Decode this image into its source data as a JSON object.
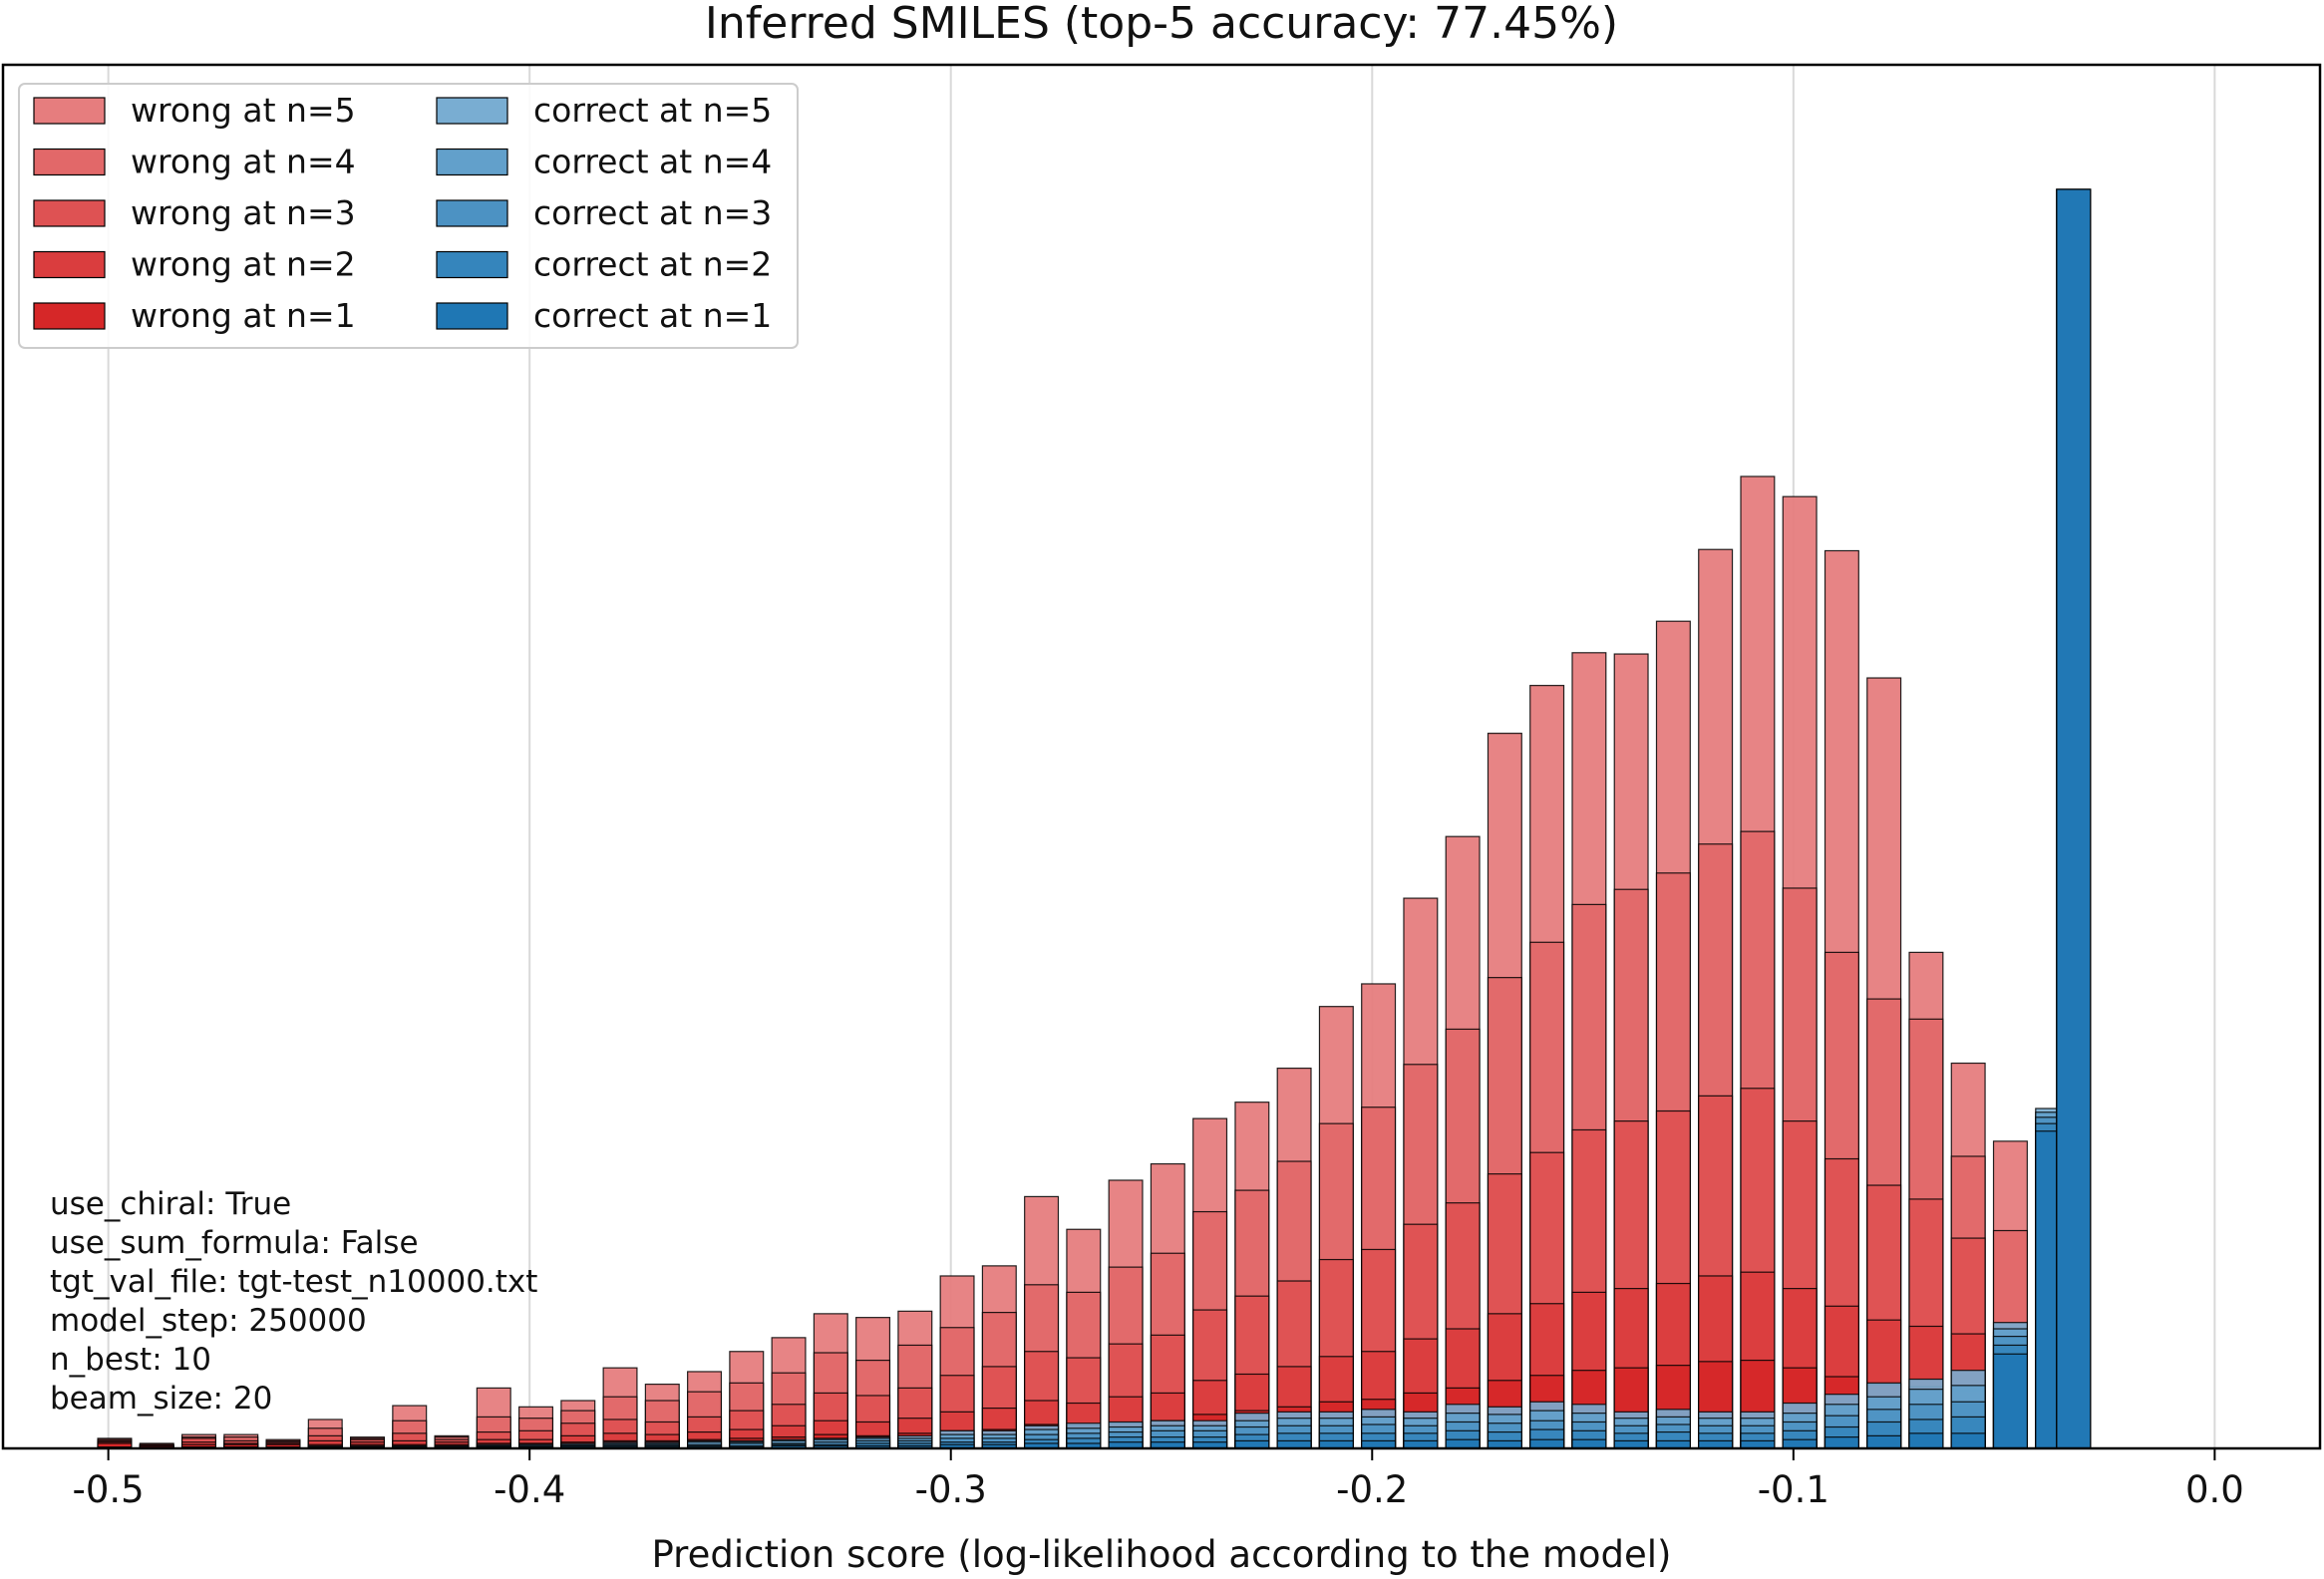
{
  "chart_data": {
    "type": "bar",
    "title": "Inferred SMILES (top-5 accuracy: 77.45%)",
    "xlabel": "Prediction score (log-likelihood according to the model)",
    "ylabel": "",
    "xlim": [
      -0.525,
      0.025
    ],
    "ylim": [
      0,
      1000
    ],
    "xticks": [
      -0.5,
      -0.4,
      -0.3,
      -0.2,
      -0.1,
      0.0
    ],
    "xtick_labels": [
      "-0.5",
      "-0.4",
      "-0.3",
      "-0.2",
      "-0.1",
      "0.0"
    ],
    "grid": "vertical",
    "legend_position": "top-left",
    "colors": {
      "wrong_base": "#d62728",
      "correct_base": "#1f77b4",
      "edge": "#000000"
    },
    "legend": [
      {
        "label": "wrong at n=5",
        "group": "wrong",
        "n": 5
      },
      {
        "label": "wrong at n=4",
        "group": "wrong",
        "n": 4
      },
      {
        "label": "wrong at n=3",
        "group": "wrong",
        "n": 3
      },
      {
        "label": "wrong at n=2",
        "group": "wrong",
        "n": 2
      },
      {
        "label": "wrong at n=1",
        "group": "wrong",
        "n": 1
      },
      {
        "label": "correct at n=5",
        "group": "correct",
        "n": 5
      },
      {
        "label": "correct at n=4",
        "group": "correct",
        "n": 4
      },
      {
        "label": "correct at n=3",
        "group": "correct",
        "n": 3
      },
      {
        "label": "correct at n=2",
        "group": "correct",
        "n": 2
      },
      {
        "label": "correct at n=1",
        "group": "correct",
        "n": 1
      }
    ],
    "annotation_lines": [
      "use_chiral: True",
      "use_sum_formula: False",
      "tgt_val_file: tgt-test_n10000.txt",
      "model_step: 250000",
      "n_best: 10",
      "beam_size: 20"
    ],
    "wrong_bars": [
      {
        "x": -0.4985,
        "stack": [
          4,
          5,
          6,
          7,
          8
        ]
      },
      {
        "x": -0.4885,
        "stack": [
          2,
          2,
          3,
          3,
          4
        ]
      },
      {
        "x": -0.4785,
        "stack": [
          3,
          5,
          8,
          9,
          11
        ]
      },
      {
        "x": -0.4685,
        "stack": [
          3,
          4,
          6,
          9,
          11
        ]
      },
      {
        "x": -0.4585,
        "stack": [
          3,
          4,
          5,
          6,
          7
        ]
      },
      {
        "x": -0.4485,
        "stack": [
          3,
          6,
          10,
          16,
          23
        ]
      },
      {
        "x": -0.4385,
        "stack": [
          3,
          5,
          7,
          8,
          9
        ]
      },
      {
        "x": -0.4285,
        "stack": [
          3,
          6,
          12,
          22,
          34
        ]
      },
      {
        "x": -0.4185,
        "stack": [
          3,
          5,
          7,
          9,
          10
        ]
      },
      {
        "x": -0.4085,
        "stack": [
          4,
          7,
          13,
          25,
          48
        ]
      },
      {
        "x": -0.3985,
        "stack": [
          4,
          7,
          14,
          24,
          33
        ]
      },
      {
        "x": -0.3885,
        "stack": [
          5,
          10,
          20,
          30,
          38
        ]
      },
      {
        "x": -0.3785,
        "stack": [
          6,
          12,
          23,
          41,
          64
        ]
      },
      {
        "x": -0.3685,
        "stack": [
          6,
          11,
          21,
          38,
          51
        ]
      },
      {
        "x": -0.3585,
        "stack": [
          7,
          13,
          25,
          45,
          61
        ]
      },
      {
        "x": -0.3485,
        "stack": [
          8,
          15,
          30,
          52,
          77
        ]
      },
      {
        "x": -0.3385,
        "stack": [
          9,
          18,
          35,
          60,
          88
        ]
      },
      {
        "x": -0.3285,
        "stack": [
          11,
          22,
          44,
          76,
          107
        ]
      },
      {
        "x": -0.3185,
        "stack": [
          10,
          21,
          42,
          70,
          104
        ]
      },
      {
        "x": -0.3085,
        "stack": [
          12,
          24,
          48,
          82,
          109
        ]
      },
      {
        "x": -0.2985,
        "stack": [
          14,
          29,
          58,
          96,
          137
        ]
      },
      {
        "x": -0.2885,
        "stack": [
          15,
          32,
          65,
          108,
          145
        ]
      },
      {
        "x": -0.2785,
        "stack": [
          19,
          38,
          77,
          130,
          200
        ]
      },
      {
        "x": -0.2685,
        "stack": [
          18,
          36,
          72,
          124,
          174
        ]
      },
      {
        "x": -0.2585,
        "stack": [
          20,
          41,
          83,
          144,
          213
        ]
      },
      {
        "x": -0.2485,
        "stack": [
          22,
          44,
          90,
          155,
          226
        ]
      },
      {
        "x": -0.2385,
        "stack": [
          27,
          54,
          110,
          188,
          262
        ]
      },
      {
        "x": -0.2285,
        "stack": [
          30,
          59,
          121,
          205,
          275
        ]
      },
      {
        "x": -0.2185,
        "stack": [
          33,
          65,
          133,
          228,
          302
        ]
      },
      {
        "x": -0.2085,
        "stack": [
          37,
          73,
          150,
          258,
          351
        ]
      },
      {
        "x": -0.1985,
        "stack": [
          39,
          77,
          158,
          271,
          369
        ]
      },
      {
        "x": -0.1885,
        "stack": [
          44,
          87,
          178,
          305,
          437
        ]
      },
      {
        "x": -0.1785,
        "stack": [
          48,
          95,
          195,
          333,
          486
        ]
      },
      {
        "x": -0.1685,
        "stack": [
          54,
          107,
          218,
          374,
          568
        ]
      },
      {
        "x": -0.1585,
        "stack": [
          58,
          115,
          235,
          402,
          606
        ]
      },
      {
        "x": -0.1485,
        "stack": [
          62,
          124,
          253,
          432,
          632
        ]
      },
      {
        "x": -0.1385,
        "stack": [
          64,
          127,
          260,
          444,
          631
        ]
      },
      {
        "x": -0.1285,
        "stack": [
          66,
          131,
          268,
          457,
          657
        ]
      },
      {
        "x": -0.1185,
        "stack": [
          69,
          137,
          280,
          480,
          714
        ]
      },
      {
        "x": -0.1085,
        "stack": [
          70,
          140,
          286,
          490,
          772
        ]
      },
      {
        "x": -0.0985,
        "stack": [
          64,
          127,
          260,
          445,
          756
        ]
      },
      {
        "x": -0.0885,
        "stack": [
          57,
          113,
          230,
          394,
          713
        ]
      },
      {
        "x": -0.0785,
        "stack": [
          51,
          102,
          209,
          357,
          612
        ]
      },
      {
        "x": -0.0685,
        "stack": [
          49,
          97,
          198,
          341,
          394
        ]
      },
      {
        "x": -0.0585,
        "stack": [
          46,
          91,
          167,
          232,
          306
        ]
      },
      {
        "x": -0.0485,
        "stack": [
          40,
          70,
          92,
          173,
          244
        ]
      },
      {
        "x": -0.0385,
        "stack": [
          11,
          24,
          45,
          90,
          135
        ]
      }
    ],
    "correct_bars": [
      {
        "x": -0.4985,
        "stack": [
          0,
          0,
          0,
          1,
          1
        ]
      },
      {
        "x": -0.4885,
        "stack": [
          0,
          0,
          0,
          0,
          1
        ]
      },
      {
        "x": -0.4785,
        "stack": [
          0,
          0,
          1,
          1,
          1
        ]
      },
      {
        "x": -0.4685,
        "stack": [
          0,
          0,
          1,
          1,
          1
        ]
      },
      {
        "x": -0.4585,
        "stack": [
          0,
          0,
          0,
          1,
          1
        ]
      },
      {
        "x": -0.4485,
        "stack": [
          0,
          1,
          1,
          1,
          2
        ]
      },
      {
        "x": -0.4385,
        "stack": [
          0,
          1,
          1,
          1,
          2
        ]
      },
      {
        "x": -0.4285,
        "stack": [
          0,
          1,
          1,
          2,
          2
        ]
      },
      {
        "x": -0.4185,
        "stack": [
          0,
          1,
          1,
          2,
          2
        ]
      },
      {
        "x": -0.4085,
        "stack": [
          1,
          1,
          2,
          2,
          3
        ]
      },
      {
        "x": -0.3985,
        "stack": [
          1,
          1,
          2,
          3,
          3
        ]
      },
      {
        "x": -0.3885,
        "stack": [
          1,
          2,
          2,
          3,
          4
        ]
      },
      {
        "x": -0.3785,
        "stack": [
          1,
          2,
          3,
          4,
          5
        ]
      },
      {
        "x": -0.3685,
        "stack": [
          1,
          2,
          3,
          4,
          5
        ]
      },
      {
        "x": -0.3585,
        "stack": [
          1,
          2,
          3,
          5,
          6
        ]
      },
      {
        "x": -0.3485,
        "stack": [
          1,
          2,
          4,
          5,
          6
        ]
      },
      {
        "x": -0.3385,
        "stack": [
          2,
          3,
          4,
          6,
          7
        ]
      },
      {
        "x": -0.3285,
        "stack": [
          2,
          3,
          5,
          7,
          8
        ]
      },
      {
        "x": -0.3185,
        "stack": [
          2,
          4,
          6,
          8,
          9
        ]
      },
      {
        "x": -0.3085,
        "stack": [
          2,
          4,
          6,
          8,
          10
        ]
      },
      {
        "x": -0.2985,
        "stack": [
          3,
          5,
          8,
          11,
          14
        ]
      },
      {
        "x": -0.2885,
        "stack": [
          3,
          5,
          8,
          11,
          14
        ]
      },
      {
        "x": -0.2785,
        "stack": [
          4,
          7,
          11,
          15,
          18
        ]
      },
      {
        "x": -0.2685,
        "stack": [
          4,
          8,
          12,
          16,
          20
        ]
      },
      {
        "x": -0.2585,
        "stack": [
          5,
          9,
          13,
          17,
          21
        ]
      },
      {
        "x": -0.2485,
        "stack": [
          5,
          9,
          14,
          18,
          22
        ]
      },
      {
        "x": -0.2385,
        "stack": [
          5,
          9,
          14,
          18,
          22
        ]
      },
      {
        "x": -0.2285,
        "stack": [
          6,
          11,
          17,
          22,
          28
        ]
      },
      {
        "x": -0.2185,
        "stack": [
          6,
          12,
          18,
          24,
          29
        ]
      },
      {
        "x": -0.2085,
        "stack": [
          6,
          12,
          18,
          24,
          29
        ]
      },
      {
        "x": -0.1985,
        "stack": [
          6,
          12,
          19,
          25,
          31
        ]
      },
      {
        "x": -0.1885,
        "stack": [
          6,
          12,
          18,
          24,
          29
        ]
      },
      {
        "x": -0.1785,
        "stack": [
          7,
          14,
          21,
          28,
          35
        ]
      },
      {
        "x": -0.1685,
        "stack": [
          6,
          13,
          20,
          27,
          33
        ]
      },
      {
        "x": -0.1585,
        "stack": [
          7,
          15,
          22,
          30,
          37
        ]
      },
      {
        "x": -0.1485,
        "stack": [
          7,
          14,
          21,
          28,
          35
        ]
      },
      {
        "x": -0.1385,
        "stack": [
          6,
          12,
          18,
          24,
          29
        ]
      },
      {
        "x": -0.1285,
        "stack": [
          6,
          13,
          19,
          25,
          31
        ]
      },
      {
        "x": -0.1185,
        "stack": [
          6,
          12,
          18,
          24,
          29
        ]
      },
      {
        "x": -0.1085,
        "stack": [
          6,
          12,
          18,
          24,
          29
        ]
      },
      {
        "x": -0.0985,
        "stack": [
          7,
          14,
          21,
          28,
          36
        ]
      },
      {
        "x": -0.0885,
        "stack": [
          9,
          17,
          26,
          35,
          43
        ]
      },
      {
        "x": -0.0785,
        "stack": [
          10,
          21,
          31,
          41,
          52
        ]
      },
      {
        "x": -0.0685,
        "stack": [
          12,
          23,
          35,
          47,
          55
        ]
      },
      {
        "x": -0.0585,
        "stack": [
          12,
          25,
          37,
          50,
          62
        ]
      },
      {
        "x": -0.0485,
        "stack": [
          75,
          82,
          89,
          95,
          100
        ]
      },
      {
        "x": -0.0385,
        "stack": [
          252,
          258,
          263,
          267,
          270
        ]
      },
      {
        "x": -0.0335,
        "stack": [
          1000,
          1000,
          1000,
          1000,
          1000
        ]
      }
    ]
  }
}
